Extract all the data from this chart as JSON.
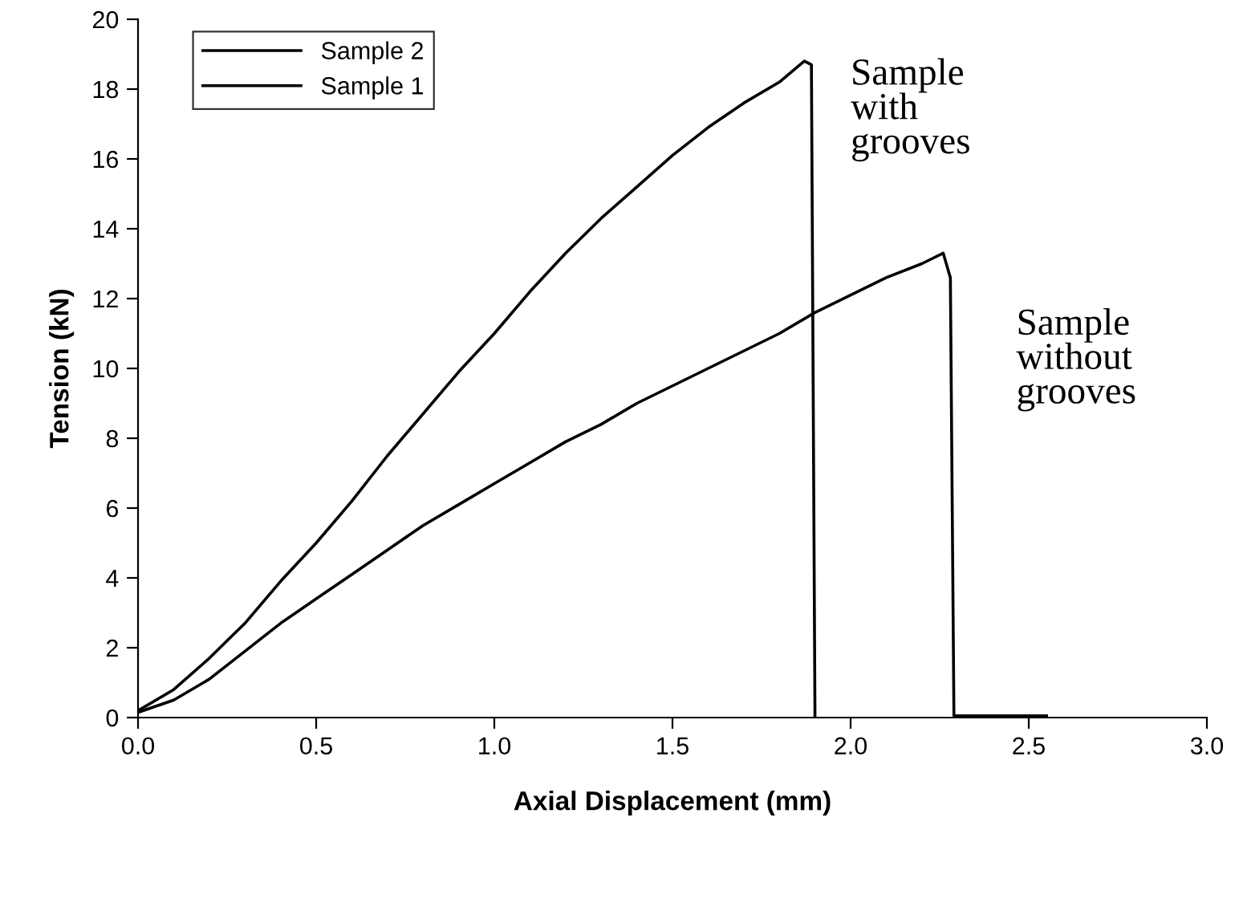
{
  "chart_data": {
    "type": "line",
    "xlabel": "Axial Displacement (mm)",
    "ylabel": "Tension (kN)",
    "xlim": [
      0,
      3
    ],
    "xticks": [
      {
        "value": 0,
        "label": "0.0"
      },
      {
        "value": 0.5,
        "label": "0.5"
      },
      {
        "value": 1,
        "label": "1.0"
      },
      {
        "value": 1.5,
        "label": "1.5"
      },
      {
        "value": 2,
        "label": "2.0"
      },
      {
        "value": 2.5,
        "label": "2.5"
      },
      {
        "value": 3,
        "label": "3.0"
      }
    ],
    "ylim": [
      0,
      20
    ],
    "yticks": [
      0,
      2,
      4,
      6,
      8,
      10,
      12,
      14,
      16,
      18,
      20
    ],
    "grid": false,
    "legend": "top left",
    "marker": "none",
    "line_style": "solid",
    "series": [
      {
        "name": "Sample 2",
        "color": "#000000",
        "x": [
          0,
          0.1,
          0.2,
          0.3,
          0.4,
          0.5,
          0.6,
          0.7,
          0.8,
          0.9,
          1.0,
          1.1,
          1.2,
          1.3,
          1.4,
          1.5,
          1.6,
          1.7,
          1.8,
          1.87,
          1.89,
          1.9
        ],
        "values": [
          0.2,
          0.8,
          1.7,
          2.7,
          3.9,
          5.0,
          6.2,
          7.5,
          8.7,
          9.9,
          11.0,
          12.2,
          13.3,
          14.3,
          15.2,
          16.1,
          16.9,
          17.6,
          18.2,
          18.8,
          18.7,
          0
        ]
      },
      {
        "name": "Sample 1",
        "color": "#000000",
        "x": [
          0,
          0.1,
          0.2,
          0.3,
          0.4,
          0.5,
          0.6,
          0.7,
          0.8,
          0.9,
          1.0,
          1.1,
          1.2,
          1.3,
          1.4,
          1.5,
          1.6,
          1.7,
          1.8,
          1.9,
          2.0,
          2.1,
          2.2,
          2.26,
          2.28,
          2.29,
          2.55
        ],
        "values": [
          0.15,
          0.5,
          1.1,
          1.9,
          2.7,
          3.4,
          4.1,
          4.8,
          5.5,
          6.1,
          6.7,
          7.3,
          7.9,
          8.4,
          9.0,
          9.5,
          10.0,
          10.5,
          11.0,
          11.6,
          12.1,
          12.6,
          13.0,
          13.3,
          12.6,
          0.05,
          0.05
        ]
      }
    ],
    "annotations": [
      {
        "text": "Sample\nwith\ngrooves",
        "x": 1.9,
        "y": 18.8
      },
      {
        "text": "Sample\nwithout\ngrooves",
        "x": 2.29,
        "y": 12.6
      }
    ]
  }
}
